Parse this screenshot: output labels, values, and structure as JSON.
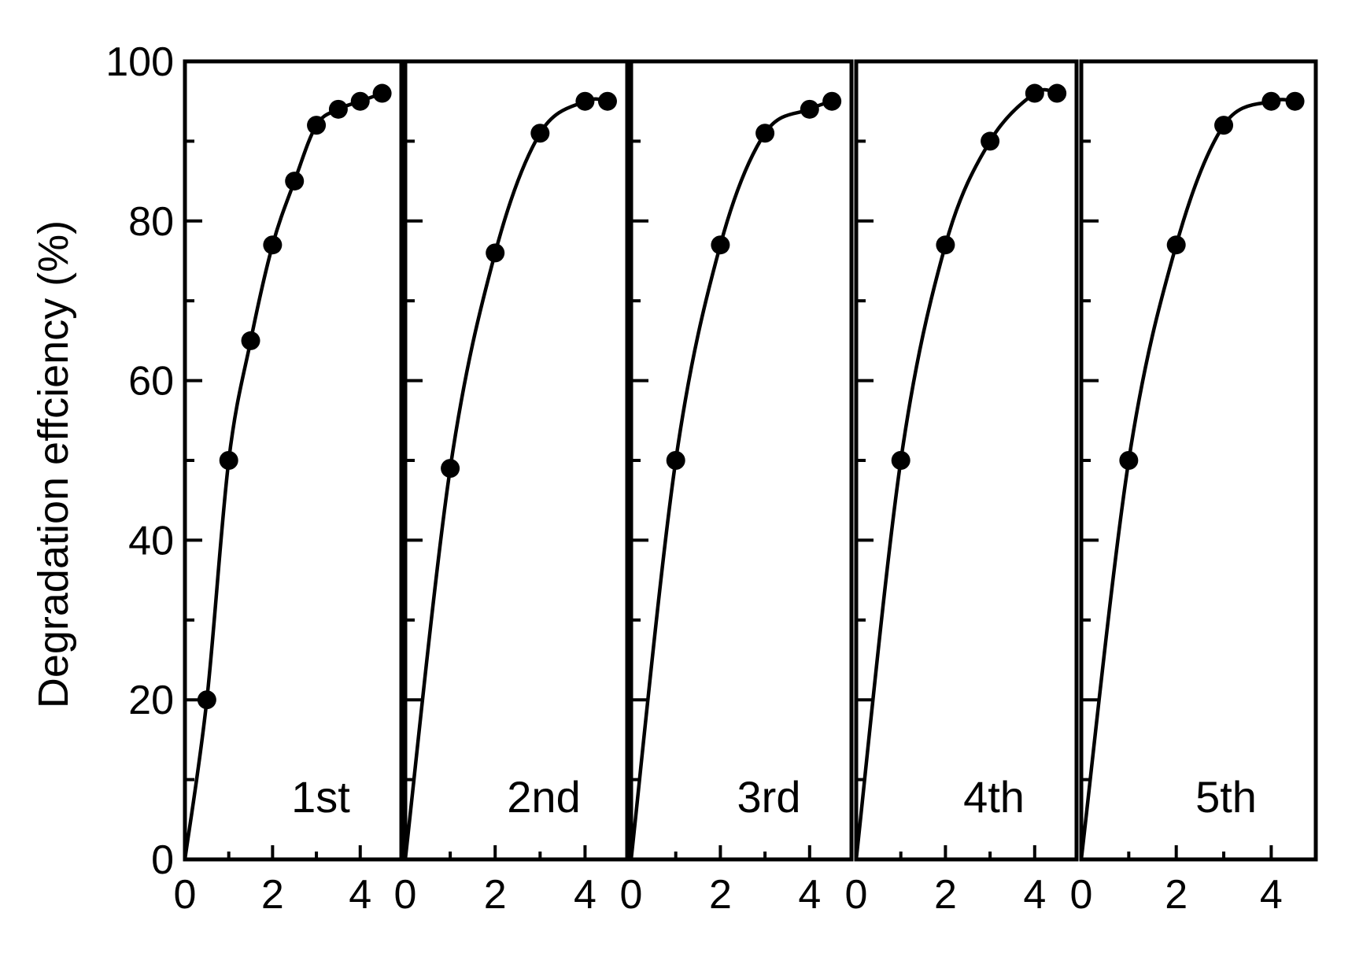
{
  "chart_data": {
    "type": "line",
    "ylabel": "Degradation effciency (%)",
    "xlabel": "",
    "ylim": [
      0,
      100
    ],
    "yticks": [
      0,
      20,
      40,
      60,
      80,
      100
    ],
    "ytick_labels": [
      "0",
      "20",
      "40",
      "60",
      "80",
      "100"
    ],
    "xlim": [
      0,
      5
    ],
    "xticks": [
      0,
      2,
      4
    ],
    "xtick_labels": [
      "0",
      "2",
      "4"
    ],
    "colors": {
      "line": "#000000",
      "marker": "#000000",
      "frame": "#000000"
    },
    "panels": [
      {
        "label": "1st",
        "x": [
          0,
          0.5,
          1,
          1.5,
          2,
          2.5,
          3,
          3.5,
          4,
          4.5
        ],
        "y": [
          0,
          20,
          50,
          65,
          77,
          85,
          92,
          94,
          95,
          96
        ]
      },
      {
        "label": "2nd",
        "x": [
          0,
          1,
          2,
          3,
          4,
          4.5
        ],
        "y": [
          0,
          49,
          76,
          91,
          95,
          95
        ]
      },
      {
        "label": "3rd",
        "x": [
          0,
          1,
          2,
          3,
          4,
          4.5
        ],
        "y": [
          0,
          50,
          77,
          91,
          94,
          95
        ]
      },
      {
        "label": "4th",
        "x": [
          0,
          1,
          2,
          3,
          4,
          4.5
        ],
        "y": [
          0,
          50,
          77,
          90,
          96,
          96
        ]
      },
      {
        "label": "5th",
        "x": [
          0,
          1,
          2,
          3,
          4,
          4.5
        ],
        "y": [
          0,
          50,
          77,
          92,
          95,
          95
        ]
      }
    ]
  }
}
